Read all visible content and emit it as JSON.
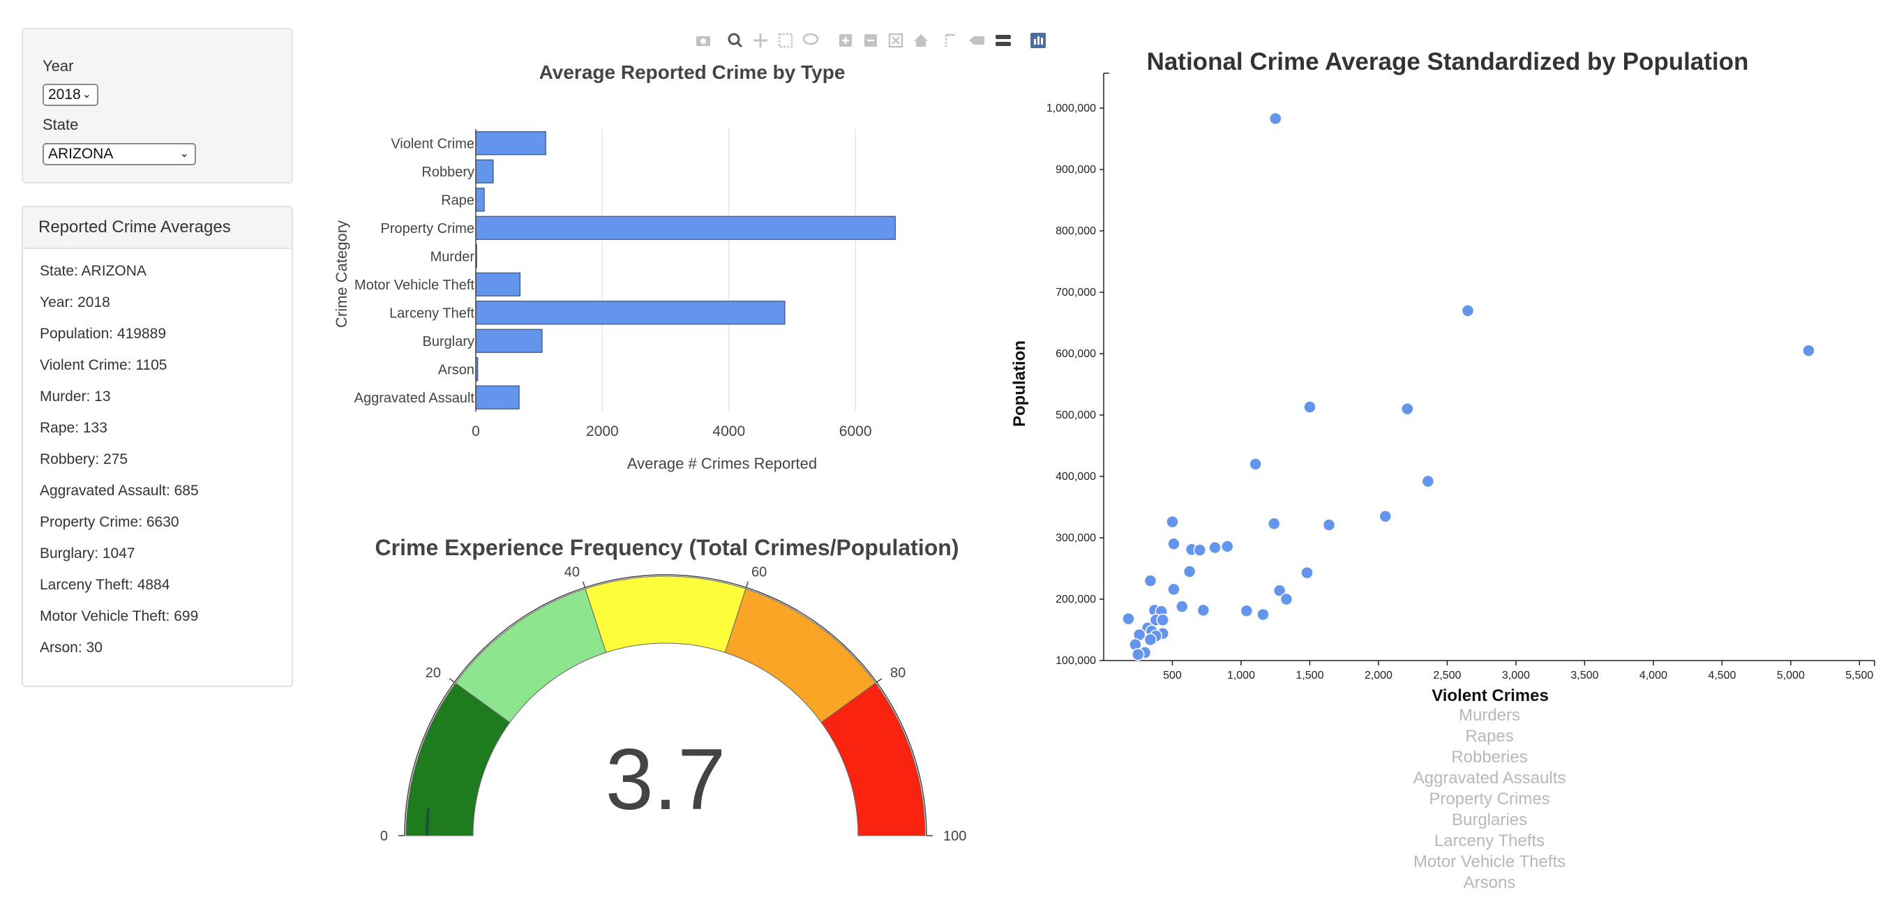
{
  "controls": {
    "year_label": "Year",
    "year_value": "2018",
    "state_label": "State",
    "state_value": "ARIZONA"
  },
  "summary": {
    "title": "Reported Crime Averages",
    "lines": [
      "State: ARIZONA",
      "Year: 2018",
      "Population: 419889",
      "Violent Crime: 1105",
      "Murder: 13",
      "Rape: 133",
      "Robbery: 275",
      "Aggravated Assault: 685",
      "Property Crime: 6630",
      "Burglary: 1047",
      "Larceny Theft: 4884",
      "Motor Vehicle Theft: 699",
      "Arson: 30"
    ]
  },
  "toolbar": {
    "icons": [
      "camera-icon",
      "zoom-icon",
      "pan-icon",
      "box-select-icon",
      "lasso-icon",
      "zoom-in-icon",
      "zoom-out-icon",
      "autoscale-icon",
      "reset-home-icon",
      "spike-lines-icon",
      "hover-closest-icon",
      "hover-compare-icon",
      "plotly-logo-icon"
    ],
    "accent": "#4c6ea3"
  },
  "chart_data": [
    {
      "type": "bar",
      "orientation": "horizontal",
      "title": "Average Reported Crime by Type",
      "xlabel": "Average # Crimes Reported",
      "ylabel": "Crime Category",
      "categories": [
        "Violent Crime",
        "Robbery",
        "Rape",
        "Property Crime",
        "Murder",
        "Motor Vehicle Theft",
        "Larceny Theft",
        "Burglary",
        "Arson",
        "Aggravated Assault"
      ],
      "values": [
        1105,
        275,
        133,
        6630,
        13,
        699,
        4884,
        1047,
        30,
        685
      ],
      "xlim": [
        0,
        7200
      ],
      "xticks": [
        0,
        2000,
        4000,
        6000
      ],
      "xtick_labels": [
        "0",
        "2000",
        "4000",
        "6000"
      ],
      "color": "#6495ed",
      "grid": true
    },
    {
      "type": "gauge",
      "title": "Crime Experience Frequency (Total Crimes/Population)",
      "value": 3.7,
      "value_label": "3.7",
      "range": [
        0,
        100
      ],
      "ticks": [
        0,
        20,
        40,
        60,
        80,
        100
      ],
      "tick_labels": [
        "0",
        "20",
        "40",
        "60",
        "80",
        "100"
      ],
      "bands": [
        {
          "from": 0,
          "to": 20,
          "color": "#1e7b1e"
        },
        {
          "from": 20,
          "to": 40,
          "color": "#8de68d"
        },
        {
          "from": 40,
          "to": 60,
          "color": "#fdfd3c"
        },
        {
          "from": 60,
          "to": 80,
          "color": "#fba526"
        },
        {
          "from": 80,
          "to": 100,
          "color": "#f9230f"
        }
      ]
    },
    {
      "type": "scatter",
      "title": "National Crime Average Standardized by Population",
      "xlabel": "Violent Crimes",
      "ylabel": "Population",
      "xlim": [
        0,
        5600
      ],
      "ylim": [
        100000,
        1000000
      ],
      "xticks": [
        500,
        1000,
        1500,
        2000,
        2500,
        3000,
        3500,
        4000,
        4500,
        5000,
        5500
      ],
      "xtick_labels": [
        "500",
        "1,000",
        "1,500",
        "2,000",
        "2,500",
        "3,000",
        "3,500",
        "4,000",
        "4,500",
        "5,000",
        "5,500"
      ],
      "yticks": [
        100000,
        200000,
        300000,
        400000,
        500000,
        600000,
        700000,
        800000,
        900000,
        1000000
      ],
      "ytick_labels": [
        "100,000",
        "200,000",
        "300,000",
        "400,000",
        "500,000",
        "600,000",
        "700,000",
        "800,000",
        "900,000",
        "1,000,000"
      ],
      "color": "#6495ed",
      "points": [
        [
          1250,
          983000
        ],
        [
          2650,
          670000
        ],
        [
          5130,
          605000
        ],
        [
          1500,
          513000
        ],
        [
          2210,
          510000
        ],
        [
          1105,
          420000
        ],
        [
          2360,
          392000
        ],
        [
          2050,
          335000
        ],
        [
          1640,
          321000
        ],
        [
          1240,
          323000
        ],
        [
          500,
          326000
        ],
        [
          510,
          290000
        ],
        [
          640,
          281000
        ],
        [
          700,
          280000
        ],
        [
          810,
          284000
        ],
        [
          900,
          286000
        ],
        [
          625,
          245000
        ],
        [
          1480,
          243000
        ],
        [
          340,
          230000
        ],
        [
          510,
          216000
        ],
        [
          1280,
          214000
        ],
        [
          1330,
          200000
        ],
        [
          570,
          188000
        ],
        [
          725,
          182000
        ],
        [
          1040,
          181000
        ],
        [
          370,
          182000
        ],
        [
          420,
          180000
        ],
        [
          180,
          168000
        ],
        [
          380,
          166000
        ],
        [
          430,
          166000
        ],
        [
          320,
          153000
        ],
        [
          350,
          148000
        ],
        [
          430,
          144000
        ],
        [
          260,
          142000
        ],
        [
          380,
          140000
        ],
        [
          340,
          134000
        ],
        [
          230,
          126000
        ],
        [
          300,
          113000
        ],
        [
          250,
          110000
        ],
        [
          1160,
          175000
        ]
      ]
    }
  ],
  "metric_list": [
    "Murders",
    "Rapes",
    "Robberies",
    "Aggravated Assaults",
    "Property Crimes",
    "Burglaries",
    "Larceny Thefts",
    "Motor Vehicle Thefts",
    "Arsons"
  ]
}
